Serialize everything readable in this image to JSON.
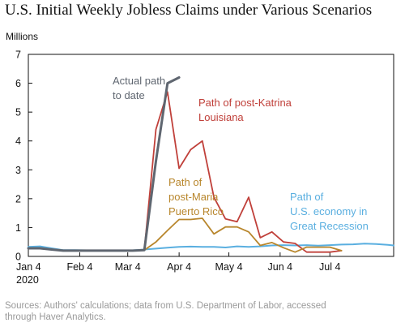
{
  "title": "U.S. Initial Weekly Jobless Claims under Various Scenarios",
  "source_lines": [
    "Sources: Authors' calculations; data from U.S. Department of Labor, accessed",
    "through Haver Analytics."
  ],
  "chart_data": {
    "type": "line",
    "ylabel": "Millions",
    "ylim": [
      0,
      7
    ],
    "yticks": [
      0,
      1,
      2,
      3,
      4,
      5,
      6,
      7
    ],
    "xlim": [
      0,
      31.5
    ],
    "xticks": [
      {
        "pos": 0,
        "label": "Jan 4",
        "sublabel": "2020"
      },
      {
        "pos": 4.43,
        "label": "Feb 4"
      },
      {
        "pos": 8.57,
        "label": "Mar 4"
      },
      {
        "pos": 13,
        "label": "Apr 4"
      },
      {
        "pos": 17.29,
        "label": "May 4"
      },
      {
        "pos": 21.71,
        "label": "Jun 4"
      },
      {
        "pos": 26,
        "label": "Jul 4"
      }
    ],
    "grid": false,
    "series": [
      {
        "name": "Path of U.S. economy in Great Recession",
        "label_lines": [
          "Path of",
          "U.S. economy in",
          "Great Recession"
        ],
        "color": "#5aafe0",
        "x": [
          0,
          1,
          2,
          3,
          4,
          5,
          6,
          7,
          8,
          9,
          10,
          11,
          12,
          13,
          14,
          15,
          16,
          17,
          18,
          19,
          20,
          21,
          22,
          23,
          24,
          25,
          26,
          27,
          28,
          29,
          30,
          31,
          31.5
        ],
        "values": [
          0.33,
          0.35,
          0.28,
          0.22,
          0.22,
          0.21,
          0.21,
          0.21,
          0.21,
          0.21,
          0.24,
          0.27,
          0.3,
          0.33,
          0.34,
          0.33,
          0.33,
          0.31,
          0.35,
          0.33,
          0.35,
          0.38,
          0.39,
          0.38,
          0.39,
          0.37,
          0.39,
          0.41,
          0.42,
          0.44,
          0.43,
          0.4,
          0.38
        ]
      },
      {
        "name": "Path of post-Katrina Louisiana",
        "label_lines": [
          "Path of post-Katrina",
          "Louisiana"
        ],
        "color": "#c0403a",
        "x": [
          10,
          11,
          12,
          13,
          14,
          15,
          16,
          17,
          18,
          19,
          20,
          21,
          22,
          23,
          24,
          25,
          26,
          27
        ],
        "values": [
          0.22,
          4.4,
          5.7,
          3.05,
          3.7,
          4.0,
          2.05,
          1.3,
          1.2,
          2.05,
          0.65,
          0.85,
          0.5,
          0.45,
          0.15,
          0.15,
          0.15,
          0.2
        ]
      },
      {
        "name": "Path of post-Maria Puerto Rico",
        "label_lines": [
          "Path of",
          "post-Maria",
          "Puerto Rico"
        ],
        "color": "#b8862c",
        "x": [
          10,
          11,
          12,
          13,
          14,
          15,
          16,
          17,
          18,
          19,
          20,
          21,
          22,
          23,
          24,
          25,
          26,
          27
        ],
        "values": [
          0.22,
          0.5,
          0.9,
          1.28,
          1.28,
          1.32,
          0.78,
          1.02,
          1.02,
          0.85,
          0.38,
          0.48,
          0.3,
          0.15,
          0.32,
          0.32,
          0.32,
          0.2
        ]
      },
      {
        "name": "Actual path to date",
        "label_lines": [
          "Actual path",
          "to date"
        ],
        "color": "#5f6670",
        "x": [
          0,
          1,
          2,
          3,
          4,
          5,
          6,
          7,
          8,
          9,
          10,
          11,
          12,
          13
        ],
        "values": [
          0.28,
          0.28,
          0.24,
          0.2,
          0.2,
          0.2,
          0.2,
          0.2,
          0.2,
          0.2,
          0.22,
          3.3,
          6.0,
          6.2
        ]
      }
    ]
  }
}
